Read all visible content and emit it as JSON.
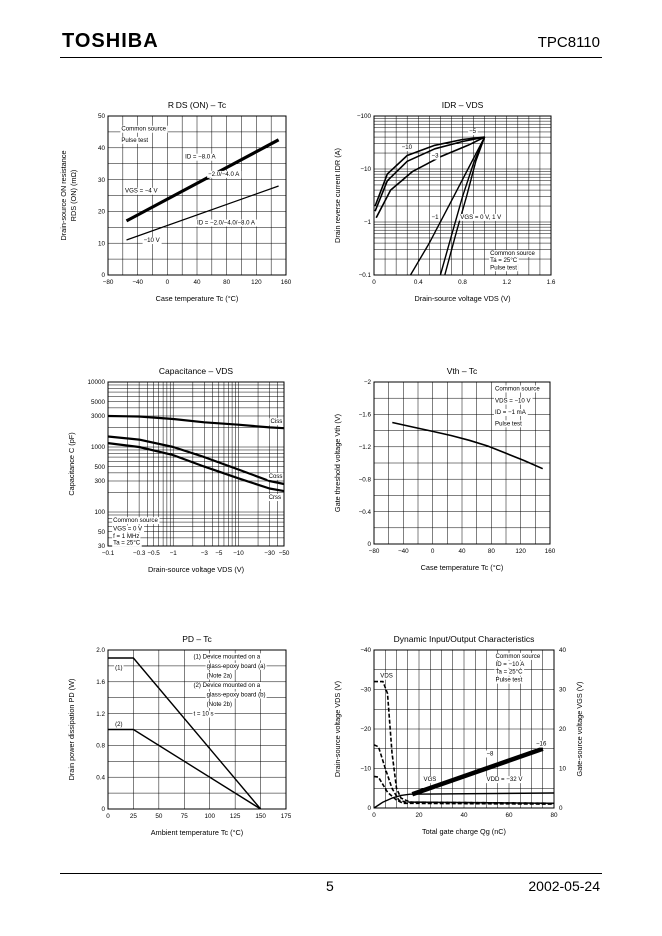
{
  "header": {
    "brand": "TOSHIBA",
    "part_number": "TPC8110"
  },
  "footer": {
    "page": "5",
    "date": "2002-05-24"
  },
  "chart_data": [
    {
      "id": "rds",
      "type": "line",
      "title": "R DS (ON) – Tc",
      "xlabel": "Case temperature    Tc    (°C)",
      "ylabel": [
        "Drain-source ON resistance",
        "RDS (ON)    (mΩ)"
      ],
      "xscale": "lin",
      "yscale": "lin",
      "xlim": [
        -80,
        160
      ],
      "ylim": [
        0,
        50
      ],
      "xticks": [
        -80,
        -40,
        0,
        40,
        80,
        120,
        160
      ],
      "xticklabels": [
        "−80",
        "−40",
        "0",
        "40",
        "80",
        "120",
        "160"
      ],
      "yticks": [
        0,
        10,
        20,
        30,
        40,
        50
      ],
      "yticklabels": [
        "0",
        "10",
        "20",
        "30",
        "40",
        "50"
      ],
      "series": [
        {
          "name": "VGS = −4 V, ID = −2.0/−4.0/−8.0 A",
          "width": 3.2,
          "x": [
            -55,
            150
          ],
          "y": [
            17,
            42.5
          ]
        },
        {
          "name": "VGS = −10 V, ID = −2.0/−4.0/−8.0 A",
          "width": 1.2,
          "x": [
            -55,
            150
          ],
          "y": [
            11,
            28
          ]
        }
      ],
      "annotations": [
        {
          "text": "Common source",
          "x": -62,
          "y": 46
        },
        {
          "text": "Pulse test",
          "x": -62,
          "y": 42.5
        },
        {
          "text": "ID = −8.0 A",
          "x": 24,
          "y": 37.2
        },
        {
          "text": "−2.0/−4.0 A",
          "x": 55,
          "y": 31.8
        },
        {
          "text": "VGS = −4 V",
          "x": -57,
          "y": 26.5
        },
        {
          "text": "ID = −2.0/−4.0/−8.0 A",
          "x": 40,
          "y": 16.5
        },
        {
          "text": "−10 V",
          "x": -32,
          "y": 11
        }
      ]
    },
    {
      "id": "idr",
      "type": "line",
      "title": "IDR – VDS",
      "xlabel": "Drain-source voltage    VDS    (V)",
      "ylabel": [
        "Drain reverse current    IDR    (A)"
      ],
      "xscale": "lin",
      "yscale": "log",
      "xlim": [
        0,
        1.6
      ],
      "ylim": [
        -0.1,
        -100
      ],
      "xticks": [
        0,
        0.4,
        0.8,
        1.2,
        1.6
      ],
      "xticklabels": [
        "0",
        "0.4",
        "0.8",
        "1.2",
        "1.6"
      ],
      "yticks": [
        -0.1,
        -1,
        -10,
        -100
      ],
      "yticklabels": [
        "−0.1",
        "−1",
        "−10",
        "−100"
      ],
      "series": [
        {
          "name": "VGS = −10 V",
          "width": 1.6,
          "x": [
            0.01,
            0.12,
            0.3,
            0.55,
            0.8,
            1.0
          ],
          "y": [
            -2,
            -8,
            -18,
            -28,
            -36,
            -40
          ]
        },
        {
          "name": "VGS = −5 V",
          "width": 1.6,
          "x": [
            0.01,
            0.12,
            0.3,
            0.55,
            0.8,
            1.0
          ],
          "y": [
            -1.6,
            -6,
            -14,
            -24,
            -33,
            -40
          ]
        },
        {
          "name": "VGS = −3 V",
          "width": 1.6,
          "x": [
            0.02,
            0.15,
            0.35,
            0.6,
            0.85,
            1.0
          ],
          "y": [
            -1.2,
            -4,
            -9,
            -17,
            -28,
            -40
          ]
        },
        {
          "name": "VGS = −1 V",
          "width": 1.4,
          "x": [
            0.33,
            0.5,
            0.7,
            0.85,
            1.0
          ],
          "y": [
            -0.1,
            -0.4,
            -2.5,
            -10,
            -40
          ]
        },
        {
          "name": "VGS = 0 V",
          "width": 1.4,
          "x": [
            0.6,
            0.7,
            0.8,
            0.9,
            1.0
          ],
          "y": [
            -0.1,
            -0.55,
            -3,
            -13,
            -40
          ]
        },
        {
          "name": "VGS = 1 V",
          "width": 1.4,
          "x": [
            0.64,
            0.74,
            0.84,
            0.92,
            1.0
          ],
          "y": [
            -0.1,
            -0.6,
            -3.2,
            -14,
            -40
          ]
        }
      ],
      "annotations": [
        {
          "text": "−5",
          "x": 0.86,
          "y": -52
        },
        {
          "text": "−10",
          "x": 0.25,
          "y": -26
        },
        {
          "text": "−3",
          "x": 0.52,
          "y": -18
        },
        {
          "text": "−1",
          "x": 0.52,
          "y": -1.25
        },
        {
          "text": "VGS = 0 V, 1 V",
          "x": 0.78,
          "y": -1.25
        },
        {
          "text": "Common source",
          "x": 1.05,
          "y": -0.26
        },
        {
          "text": "Ta = 25°C",
          "x": 1.05,
          "y": -0.19
        },
        {
          "text": "Pulse test",
          "x": 1.05,
          "y": -0.14
        }
      ]
    },
    {
      "id": "cap",
      "type": "line",
      "title": "Capacitance – VDS",
      "xlabel": "Drain-source voltage    VDS    (V)",
      "ylabel": [
        "Capacitance    C    (pF)"
      ],
      "xscale": "log",
      "yscale": "log",
      "xlim": [
        -0.1,
        -50
      ],
      "ylim": [
        30,
        10000
      ],
      "xticks": [
        -0.1,
        -0.3,
        -0.5,
        -1,
        -3,
        -5,
        -10,
        -30,
        -50
      ],
      "xticklabels": [
        "−0.1",
        "−0.3",
        "−0.5",
        "−1",
        "−3",
        "−5",
        "−10",
        "−30",
        "−50"
      ],
      "yticks": [
        30,
        50,
        100,
        300,
        500,
        1000,
        3000,
        5000,
        10000
      ],
      "yticklabels": [
        "30",
        "50",
        "100",
        "300",
        "500",
        "1000",
        "3000",
        "5000",
        "10000"
      ],
      "series": [
        {
          "name": "Ciss",
          "width": 2.2,
          "x": [
            -0.1,
            -0.3,
            -1,
            -3,
            -10,
            -30,
            -50
          ],
          "y": [
            3000,
            2950,
            2700,
            2400,
            2200,
            2000,
            1950
          ]
        },
        {
          "name": "Coss",
          "width": 2.2,
          "x": [
            -0.1,
            -0.3,
            -1,
            -3,
            -10,
            -30,
            -50
          ],
          "y": [
            1450,
            1300,
            1000,
            700,
            450,
            300,
            270
          ]
        },
        {
          "name": "Crss",
          "width": 2.2,
          "x": [
            -0.1,
            -0.3,
            -1,
            -3,
            -10,
            -30,
            -50
          ],
          "y": [
            1150,
            1000,
            750,
            500,
            330,
            230,
            210
          ]
        }
      ],
      "annotations": [
        {
          "text": "Ciss",
          "x": -31,
          "y": 2500
        },
        {
          "text": "Coss",
          "x": -29,
          "y": 360
        },
        {
          "text": "Crss",
          "x": -29,
          "y": 170
        },
        {
          "text": "Common source",
          "x": -0.12,
          "y": 75
        },
        {
          "text": "VGS = 0 V",
          "x": -0.12,
          "y": 56
        },
        {
          "text": "f = 1 MHz",
          "x": -0.12,
          "y": 43
        },
        {
          "text": "Ta = 25°C",
          "x": -0.12,
          "y": 34
        }
      ]
    },
    {
      "id": "vth",
      "type": "line",
      "title": "Vth – Tc",
      "xlabel": "Case temperature    Tc    (°C)",
      "ylabel": [
        "Gate threshold voltage    Vth    (V)"
      ],
      "xscale": "lin",
      "yscale": "lin",
      "xlim": [
        -80,
        160
      ],
      "ylim": [
        0,
        -2
      ],
      "xticks": [
        -80,
        -40,
        0,
        40,
        80,
        120,
        160
      ],
      "xticklabels": [
        "−80",
        "−40",
        "0",
        "40",
        "80",
        "120",
        "160"
      ],
      "yticks": [
        0,
        -0.4,
        -0.8,
        -1.2,
        -1.6,
        -2
      ],
      "yticklabels": [
        "0",
        "−0.4",
        "−0.8",
        "−1.2",
        "−1.6",
        "−2"
      ],
      "series": [
        {
          "name": "Vth",
          "width": 1.6,
          "x": [
            -55,
            -25,
            0,
            25,
            50,
            75,
            100,
            125,
            150
          ],
          "y": [
            -1.5,
            -1.44,
            -1.39,
            -1.34,
            -1.28,
            -1.21,
            -1.12,
            -1.03,
            -0.93
          ]
        }
      ],
      "annotations": [
        {
          "text": "Common source",
          "x": 85,
          "y": -1.92
        },
        {
          "text": "VDS = −10 V",
          "x": 85,
          "y": -1.77
        },
        {
          "text": "ID = −1 mA",
          "x": 85,
          "y": -1.63
        },
        {
          "text": "Pulse test",
          "x": 85,
          "y": -1.49
        }
      ]
    },
    {
      "id": "pd",
      "type": "line",
      "title": "PD – Tc",
      "xlabel": "Ambient temperature    Tc    (°C)",
      "ylabel": [
        "Drain power dissipation    PD    (W)"
      ],
      "xscale": "lin",
      "yscale": "lin",
      "xlim": [
        0,
        175
      ],
      "ylim": [
        0,
        2.0
      ],
      "xticks": [
        0,
        25,
        50,
        75,
        100,
        125,
        150,
        175
      ],
      "xticklabels": [
        "0",
        "25",
        "50",
        "75",
        "100",
        "125",
        "150",
        "175"
      ],
      "yticks": [
        0,
        0.4,
        0.8,
        1.2,
        1.6,
        2.0
      ],
      "yticklabels": [
        "0",
        "0.4",
        "0.8",
        "1.2",
        "1.6",
        "2.0"
      ],
      "series": [
        {
          "name": "(1)",
          "width": 1.4,
          "x": [
            0,
            25,
            150
          ],
          "y": [
            1.9,
            1.9,
            0
          ]
        },
        {
          "name": "(2)",
          "width": 1.4,
          "x": [
            0,
            25,
            150
          ],
          "y": [
            1.0,
            1.0,
            0
          ]
        }
      ],
      "annotations": [
        {
          "text": "(1)",
          "x": 7,
          "y": 1.78
        },
        {
          "text": "(2)",
          "x": 7,
          "y": 1.07
        },
        {
          "text": "(1)   Device mounted on a",
          "x": 84,
          "y": 1.92
        },
        {
          "text": "glass-epoxy board (a)",
          "x": 97,
          "y": 1.8
        },
        {
          "text": "(Note 2a)",
          "x": 97,
          "y": 1.68
        },
        {
          "text": "(2)   Device mounted on a",
          "x": 84,
          "y": 1.56
        },
        {
          "text": "glass-epoxy board (b)",
          "x": 97,
          "y": 1.44
        },
        {
          "text": "(Note 2b)",
          "x": 97,
          "y": 1.32
        },
        {
          "text": "t = 10 s",
          "x": 84,
          "y": 1.2
        }
      ]
    },
    {
      "id": "dyn",
      "type": "line",
      "title": "Dynamic Input/Output Characteristics",
      "xlabel": "Total gate charge    Qg    (nC)",
      "ylabel": [
        "Drain-source voltage    VDS    (V)"
      ],
      "ylabel_right": "Gate-source voltage    VGS    (V)",
      "xscale": "lin",
      "yscale": "lin",
      "xlim": [
        0,
        80
      ],
      "ylim": [
        0,
        -40
      ],
      "ylim_right": [
        0,
        40
      ],
      "xticks": [
        0,
        20,
        40,
        60,
        80
      ],
      "xticklabels": [
        "0",
        "20",
        "40",
        "60",
        "80"
      ],
      "yticks": [
        0,
        -10,
        -20,
        -30,
        -40
      ],
      "yticklabels": [
        "0",
        "−10",
        "−20",
        "−30",
        "−40"
      ],
      "yticks_right": [
        0,
        10,
        20,
        30,
        40
      ],
      "yticklabels_right": [
        "0",
        "10",
        "20",
        "30",
        "40"
      ],
      "series": [
        {
          "name": "VDS = −32 V",
          "width": 1.6,
          "dash": "4,2",
          "x": [
            0,
            4,
            6,
            8,
            10,
            12,
            16,
            80
          ],
          "y": [
            -32,
            -32,
            -29,
            -14,
            -5,
            -2.5,
            -1.5,
            -1.2
          ]
        },
        {
          "name": "VDS = −16 V",
          "width": 1.6,
          "dash": "4,2",
          "x": [
            0,
            2,
            5,
            8,
            11,
            14,
            80
          ],
          "y": [
            -16,
            -15.5,
            -10,
            -5,
            -2,
            -1.5,
            -1.2
          ]
        },
        {
          "name": "VDS = −8 V",
          "width": 1.6,
          "dash": "4,2",
          "x": [
            0,
            2,
            6,
            10,
            13,
            80
          ],
          "y": [
            -8,
            -7.8,
            -4,
            -2,
            -1.2,
            -1
          ]
        },
        {
          "name": "VGS",
          "width": 1.4,
          "x": [
            0,
            4,
            8,
            12,
            16,
            80
          ],
          "y": [
            0,
            -1.5,
            -2.5,
            -3.2,
            -3.5,
            -3.8
          ]
        },
        {
          "name": "VGS plateau",
          "width": 4.5,
          "x": [
            17,
            75
          ],
          "y": [
            -3.5,
            -15
          ]
        }
      ],
      "annotations": [
        {
          "text": "VDS",
          "x": 2.8,
          "y": -33.5
        },
        {
          "text": "−16",
          "x": 72,
          "y": -16.3
        },
        {
          "text": "−8",
          "x": 50,
          "y": -13.8
        },
        {
          "text": "VGS",
          "x": 22,
          "y": -7.3
        },
        {
          "text": "VDD = −32 V",
          "x": 50,
          "y": -7.3
        },
        {
          "text": "Common source",
          "x": 54,
          "y": -38.5
        },
        {
          "text": "ID = −10 A",
          "x": 54,
          "y": -36.5
        },
        {
          "text": "Ta = 25°C",
          "x": 54,
          "y": -34.5
        },
        {
          "text": "Pulse test",
          "x": 54,
          "y": -32.5
        }
      ]
    }
  ]
}
